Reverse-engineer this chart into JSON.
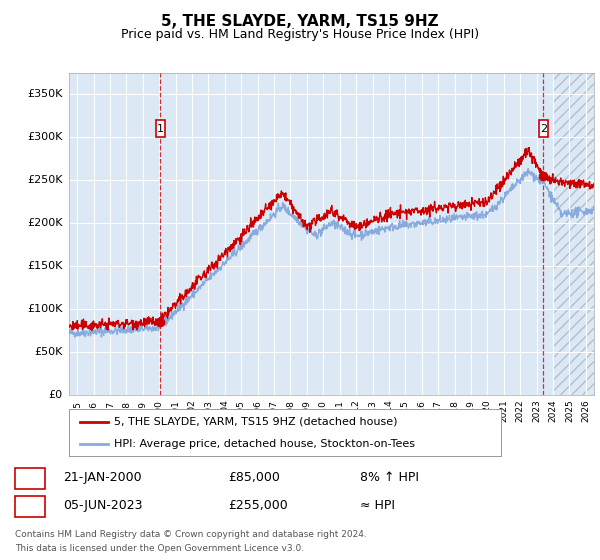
{
  "title": "5, THE SLAYDE, YARM, TS15 9HZ",
  "subtitle": "Price paid vs. HM Land Registry's House Price Index (HPI)",
  "title_fontsize": 11,
  "subtitle_fontsize": 9,
  "background_color": "#ffffff",
  "plot_bg_color": "#dce9f5",
  "hatch_color": "#b0bece",
  "grid_color": "#ffffff",
  "red_line_color": "#cc0000",
  "blue_line_color": "#88aadd",
  "ylabel_ticks": [
    "£0",
    "£50K",
    "£100K",
    "£150K",
    "£200K",
    "£250K",
    "£300K",
    "£350K"
  ],
  "ytick_values": [
    0,
    50000,
    100000,
    150000,
    200000,
    250000,
    300000,
    350000
  ],
  "ylim": [
    0,
    375000
  ],
  "xlim_start": 1994.5,
  "xlim_end": 2026.5,
  "hatch_start": 2024.0,
  "sale1_x": 2000.056,
  "sale1_y": 85000,
  "sale1_label": "1",
  "sale1_date": "21-JAN-2000",
  "sale1_price": "£85,000",
  "sale1_hpi": "8% ↑ HPI",
  "sale2_x": 2023.42,
  "sale2_y": 255000,
  "sale2_label": "2",
  "sale2_date": "05-JUN-2023",
  "sale2_price": "£255,000",
  "sale2_hpi": "≈ HPI",
  "legend_line1": "5, THE SLAYDE, YARM, TS15 9HZ (detached house)",
  "legend_line2": "HPI: Average price, detached house, Stockton-on-Tees",
  "footer1": "Contains HM Land Registry data © Crown copyright and database right 2024.",
  "footer2": "This data is licensed under the Open Government Licence v3.0."
}
